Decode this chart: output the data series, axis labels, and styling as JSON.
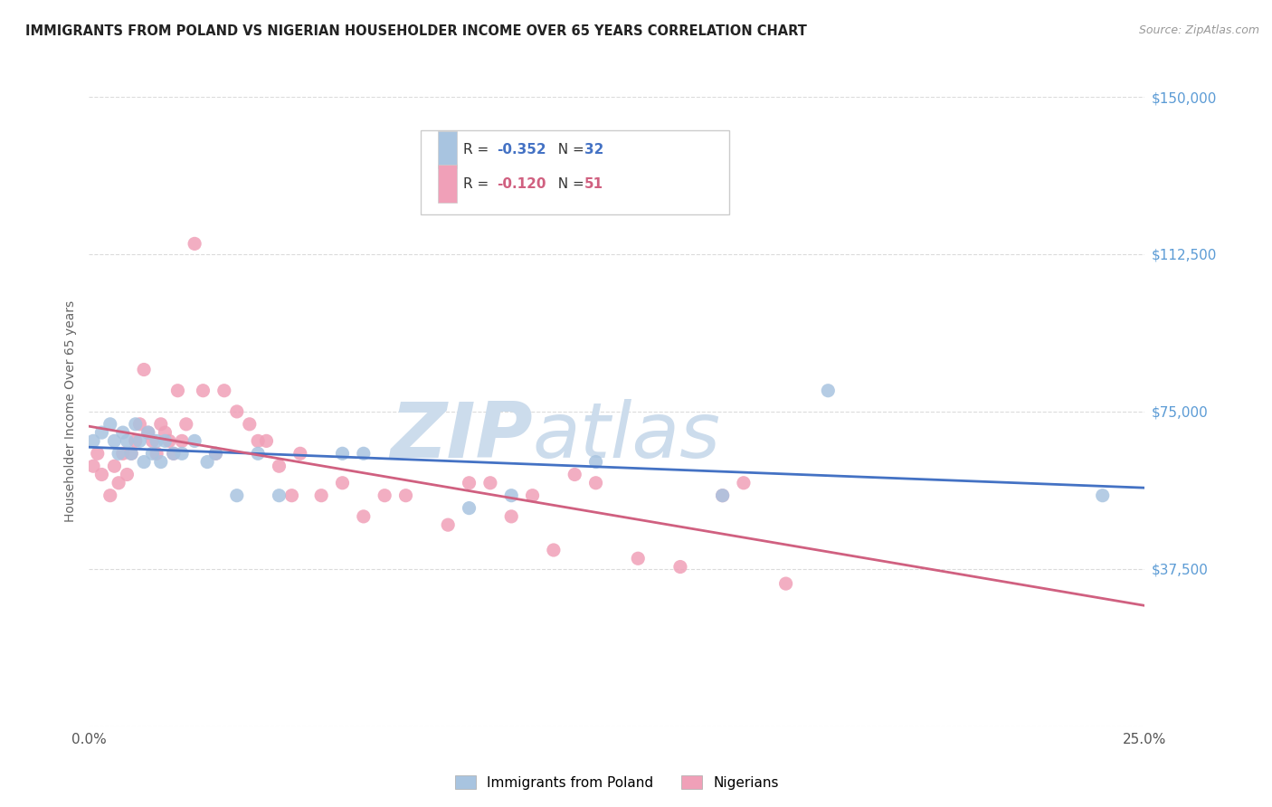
{
  "title": "IMMIGRANTS FROM POLAND VS NIGERIAN HOUSEHOLDER INCOME OVER 65 YEARS CORRELATION CHART",
  "source": "Source: ZipAtlas.com",
  "ylabel": "Householder Income Over 65 years",
  "xlim": [
    0,
    0.25
  ],
  "ylim": [
    0,
    150000
  ],
  "yticks": [
    0,
    37500,
    75000,
    112500,
    150000
  ],
  "ytick_labels": [
    "",
    "$37,500",
    "$75,000",
    "$112,500",
    "$150,000"
  ],
  "xticks": [
    0.0,
    0.05,
    0.1,
    0.15,
    0.2,
    0.25
  ],
  "xtick_labels": [
    "0.0%",
    "",
    "",
    "",
    "",
    "25.0%"
  ],
  "bg_color": "#ffffff",
  "grid_color": "#d8d8d8",
  "poland_color": "#a8c4e0",
  "nigeria_color": "#f0a0b8",
  "poland_line_color": "#4472c4",
  "nigeria_line_color": "#d06080",
  "right_tick_color": "#5b9bd5",
  "watermark_color": "#ccdcec",
  "legend_r_poland": "-0.352",
  "legend_n_poland": "32",
  "legend_r_nigeria": "-0.120",
  "legend_n_nigeria": "51",
  "poland_x": [
    0.001,
    0.003,
    0.005,
    0.006,
    0.007,
    0.008,
    0.009,
    0.01,
    0.011,
    0.012,
    0.013,
    0.014,
    0.015,
    0.016,
    0.017,
    0.018,
    0.02,
    0.022,
    0.025,
    0.028,
    0.03,
    0.035,
    0.04,
    0.045,
    0.06,
    0.065,
    0.09,
    0.1,
    0.12,
    0.15,
    0.175,
    0.24
  ],
  "poland_y": [
    68000,
    70000,
    72000,
    68000,
    65000,
    70000,
    68000,
    65000,
    72000,
    68000,
    63000,
    70000,
    65000,
    68000,
    63000,
    68000,
    65000,
    65000,
    68000,
    63000,
    65000,
    55000,
    65000,
    55000,
    65000,
    65000,
    52000,
    55000,
    63000,
    55000,
    80000,
    55000
  ],
  "nigeria_x": [
    0.001,
    0.002,
    0.003,
    0.005,
    0.006,
    0.007,
    0.008,
    0.009,
    0.01,
    0.011,
    0.012,
    0.013,
    0.014,
    0.015,
    0.016,
    0.017,
    0.018,
    0.019,
    0.02,
    0.021,
    0.022,
    0.023,
    0.025,
    0.027,
    0.03,
    0.032,
    0.035,
    0.038,
    0.04,
    0.042,
    0.045,
    0.048,
    0.05,
    0.055,
    0.06,
    0.065,
    0.07,
    0.075,
    0.085,
    0.09,
    0.095,
    0.1,
    0.105,
    0.11,
    0.115,
    0.12,
    0.13,
    0.14,
    0.15,
    0.155,
    0.165
  ],
  "nigeria_y": [
    62000,
    65000,
    60000,
    55000,
    62000,
    58000,
    65000,
    60000,
    65000,
    68000,
    72000,
    85000,
    70000,
    68000,
    65000,
    72000,
    70000,
    68000,
    65000,
    80000,
    68000,
    72000,
    115000,
    80000,
    65000,
    80000,
    75000,
    72000,
    68000,
    68000,
    62000,
    55000,
    65000,
    55000,
    58000,
    50000,
    55000,
    55000,
    48000,
    58000,
    58000,
    50000,
    55000,
    42000,
    60000,
    58000,
    40000,
    38000,
    55000,
    58000,
    34000
  ]
}
